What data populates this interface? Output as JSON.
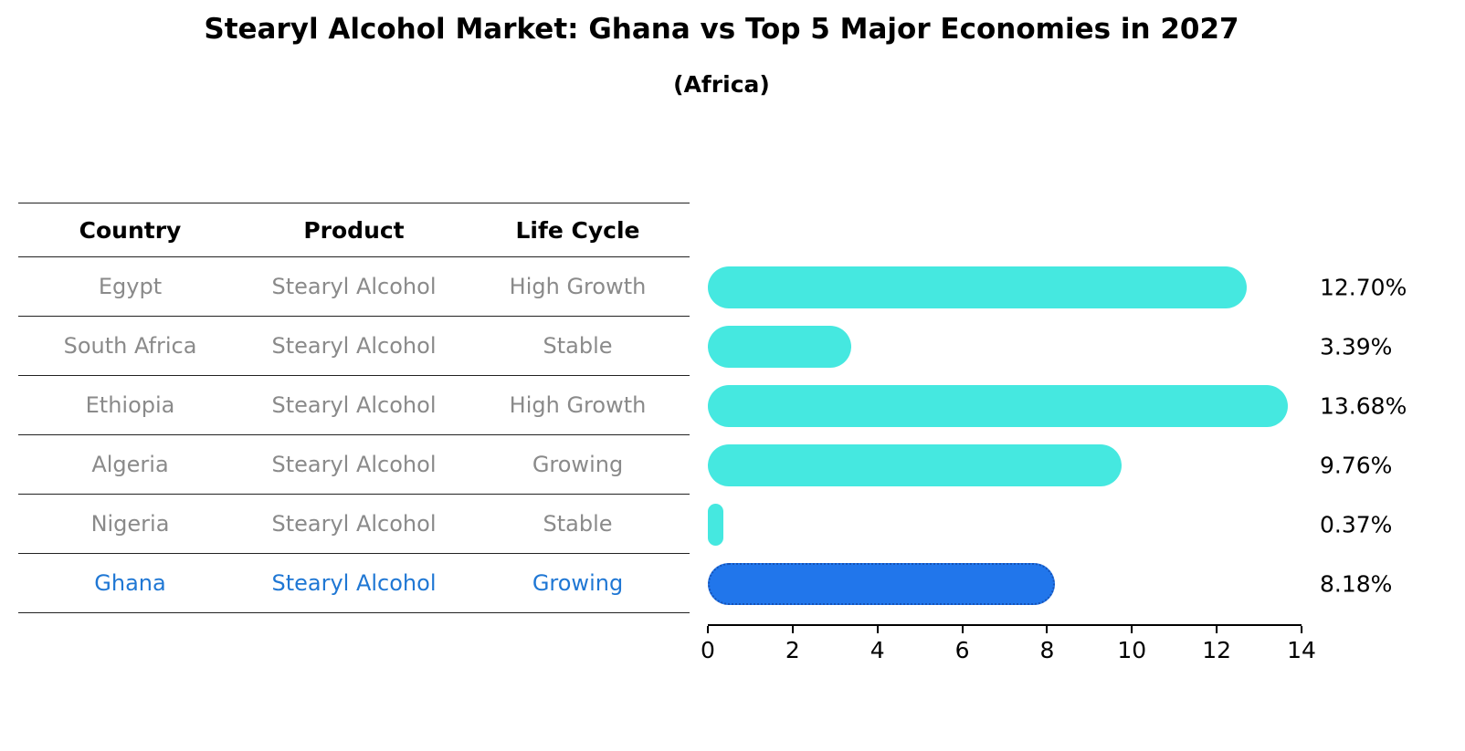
{
  "title": "Stearyl Alcohol Market: Ghana vs Top 5 Major Economies in 2027",
  "subtitle": "(Africa)",
  "table": {
    "headers": [
      "Country",
      "Product",
      "Life Cycle"
    ],
    "rows": [
      {
        "country": "Egypt",
        "product": "Stearyl Alcohol",
        "life_cycle": "High Growth"
      },
      {
        "country": "South Africa",
        "product": "Stearyl Alcohol",
        "life_cycle": "Stable"
      },
      {
        "country": "Ethiopia",
        "product": "Stearyl Alcohol",
        "life_cycle": "High Growth"
      },
      {
        "country": "Algeria",
        "product": "Stearyl Alcohol",
        "life_cycle": "Growing"
      },
      {
        "country": "Nigeria",
        "product": "Stearyl Alcohol",
        "life_cycle": "Stable"
      },
      {
        "country": "Ghana",
        "product": "Stearyl Alcohol",
        "life_cycle": "Growing"
      }
    ]
  },
  "chart_data": {
    "type": "bar",
    "orientation": "horizontal",
    "title": "Stearyl Alcohol Market: Ghana vs Top 5 Major Economies in 2027 (Africa)",
    "categories": [
      "Egypt",
      "South Africa",
      "Ethiopia",
      "Algeria",
      "Nigeria",
      "Ghana"
    ],
    "values": [
      12.7,
      3.39,
      13.68,
      9.76,
      0.37,
      8.18
    ],
    "value_labels": [
      "12.70%",
      "3.39%",
      "13.68%",
      "9.76%",
      "0.37%",
      "8.18%"
    ],
    "xlim": [
      0,
      14
    ],
    "ticks": [
      "0",
      "2",
      "4",
      "6",
      "8",
      "10",
      "12",
      "14"
    ],
    "bar_color": "#45e8e0",
    "highlight_color": "#2176eb",
    "highlight_index": 5,
    "highlight_text_color": "#1f77d4",
    "grid": false,
    "legend": "none"
  }
}
